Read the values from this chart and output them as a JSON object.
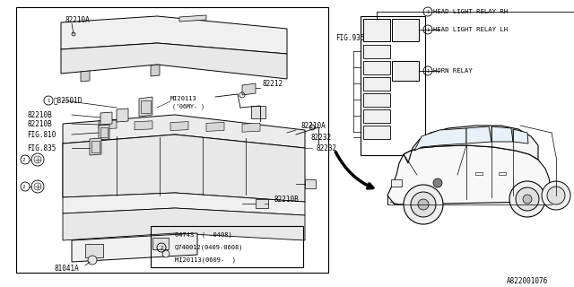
{
  "bg_color": "#ffffff",
  "line_color": "#000000",
  "part_code": "A822001076",
  "labels": {
    "82210A_top": "82210A",
    "82212": "82212",
    "MI20113": "MI20113",
    "06MY": "(’06MY- )",
    "82501D": "ᠧ82501D",
    "82210B_1": "82210B",
    "82210B_2": "82210B",
    "FIG810": "FIG.810",
    "FIG835_left": "FIG.835",
    "82210A_mid": "82210A",
    "82232": "82232",
    "82210B_bot": "82210B",
    "81041A": "81041A",
    "FIG935": "FIG.935",
    "HEAD_RH": "HEAD LIGHT RELAY RH",
    "HEAD_LH": "HEAD LIGHT RELAY LH",
    "HORN": "HORN RELAY",
    "legend1": "0474S  ( -0408)",
    "legend2": "Q740012(0409-0608)",
    "legend3": "MI20113(0609-  )"
  }
}
